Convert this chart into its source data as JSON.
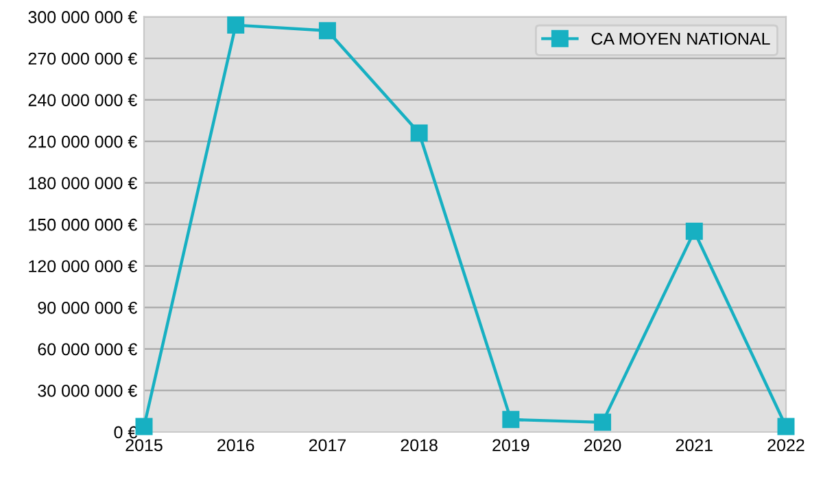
{
  "chart_data": {
    "type": "line",
    "x": [
      2015,
      2016,
      2017,
      2018,
      2019,
      2020,
      2021,
      2022
    ],
    "series": [
      {
        "name": "CA MOYEN NATIONAL",
        "color": "#17b0c2",
        "values": [
          4000000,
          294000000,
          290000000,
          216000000,
          9000000,
          7000000,
          145000000,
          4000000
        ]
      }
    ],
    "xlim": [
      2015,
      2022
    ],
    "xticks": [
      2015,
      2016,
      2017,
      2018,
      2019,
      2020,
      2021,
      2022
    ],
    "ylim": [
      0,
      300000000
    ],
    "yticks": [
      {
        "value": 0,
        "label": "0 €"
      },
      {
        "value": 30000000,
        "label": "30 000 000 €"
      },
      {
        "value": 60000000,
        "label": "60 000 000 €"
      },
      {
        "value": 90000000,
        "label": "90 000 000 €"
      },
      {
        "value": 120000000,
        "label": "120 000 000 €"
      },
      {
        "value": 150000000,
        "label": "150 000 000 €"
      },
      {
        "value": 180000000,
        "label": "180 000 000 €"
      },
      {
        "value": 210000000,
        "label": "210 000 000 €"
      },
      {
        "value": 240000000,
        "label": "240 000 000 €"
      },
      {
        "value": 270000000,
        "label": "270 000 000 €"
      },
      {
        "value": 300000000,
        "label": "300 000 000 €"
      }
    ],
    "grid": "y",
    "legend": "top right",
    "marker": "square",
    "line_style": "solid"
  }
}
